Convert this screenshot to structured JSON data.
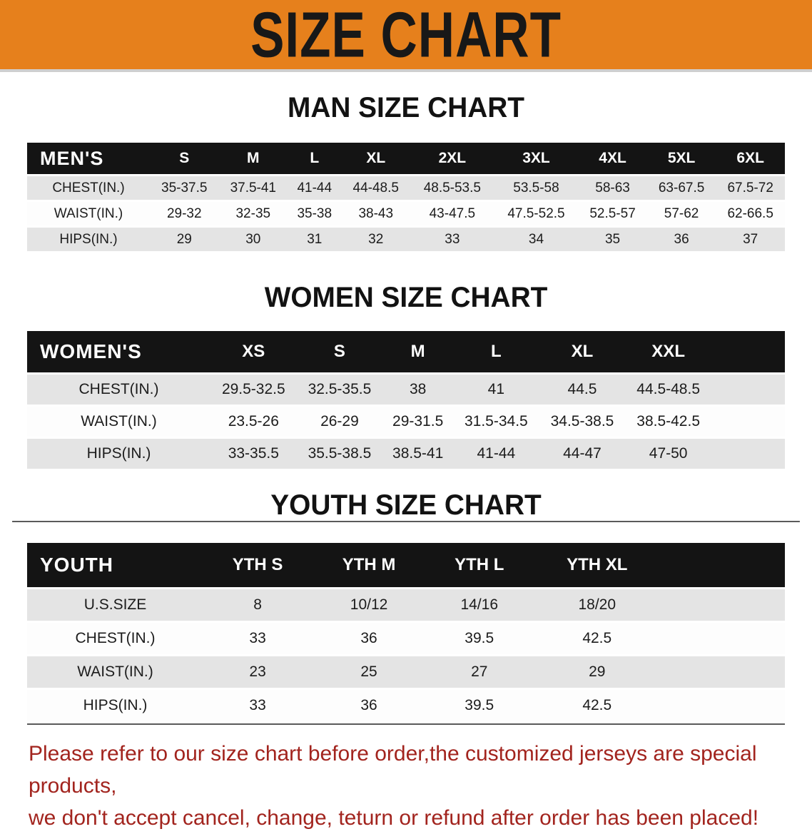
{
  "banner": {
    "title": "SIZE CHART"
  },
  "colors": {
    "banner_bg": "#e6801c",
    "table_header_bg": "#141414",
    "row_alt_gray": "#e4e4e4",
    "disclaimer_red": "#a2241e"
  },
  "sections": [
    {
      "heading": "MAN SIZE CHART",
      "table": {
        "label": "MEN'S",
        "columns": [
          "S",
          "M",
          "L",
          "XL",
          "2XL",
          "3XL",
          "4XL",
          "5XL",
          "6XL"
        ],
        "rows": [
          {
            "label": "CHEST(IN.)",
            "values": [
              "35-37.5",
              "37.5-41",
              "41-44",
              "44-48.5",
              "48.5-53.5",
              "53.5-58",
              "58-63",
              "63-67.5",
              "67.5-72"
            ]
          },
          {
            "label": "WAIST(IN.)",
            "values": [
              "29-32",
              "32-35",
              "35-38",
              "38-43",
              "43-47.5",
              "47.5-52.5",
              "52.5-57",
              "57-62",
              "62-66.5"
            ]
          },
          {
            "label": "HIPS(IN.)",
            "values": [
              "29",
              "30",
              "31",
              "32",
              "33",
              "34",
              "35",
              "36",
              "37"
            ]
          }
        ]
      }
    },
    {
      "heading": "WOMEN SIZE CHART",
      "table": {
        "label": "WOMEN'S",
        "columns": [
          "XS",
          "S",
          "M",
          "L",
          "XL",
          "XXL"
        ],
        "rows": [
          {
            "label": "CHEST(IN.)",
            "values": [
              "29.5-32.5",
              "32.5-35.5",
              "38",
              "41",
              "44.5",
              "44.5-48.5"
            ]
          },
          {
            "label": "WAIST(IN.)",
            "values": [
              "23.5-26",
              "26-29",
              "29-31.5",
              "31.5-34.5",
              "34.5-38.5",
              "38.5-42.5"
            ]
          },
          {
            "label": "HIPS(IN.)",
            "values": [
              "33-35.5",
              "35.5-38.5",
              "38.5-41",
              "41-44",
              "44-47",
              "47-50"
            ]
          }
        ]
      }
    },
    {
      "heading": "YOUTH SIZE CHART",
      "table": {
        "label": "YOUTH",
        "columns": [
          "YTH S",
          "YTH M",
          "YTH L",
          "YTH XL"
        ],
        "rows": [
          {
            "label": "U.S.SIZE",
            "values": [
              "8",
              "10/12",
              "14/16",
              "18/20"
            ]
          },
          {
            "label": "CHEST(IN.)",
            "values": [
              "33",
              "36",
              "39.5",
              "42.5"
            ]
          },
          {
            "label": "WAIST(IN.)",
            "values": [
              "23",
              "25",
              "27",
              "29"
            ]
          },
          {
            "label": "HIPS(IN.)",
            "values": [
              "33",
              "36",
              "39.5",
              "42.5"
            ]
          }
        ]
      }
    }
  ],
  "disclaimer": {
    "lines": [
      "Please refer to our size chart before order,the customized jerseys are special products,",
      "we don't accept cancel, change, teturn or refund after order has been placed!"
    ]
  }
}
